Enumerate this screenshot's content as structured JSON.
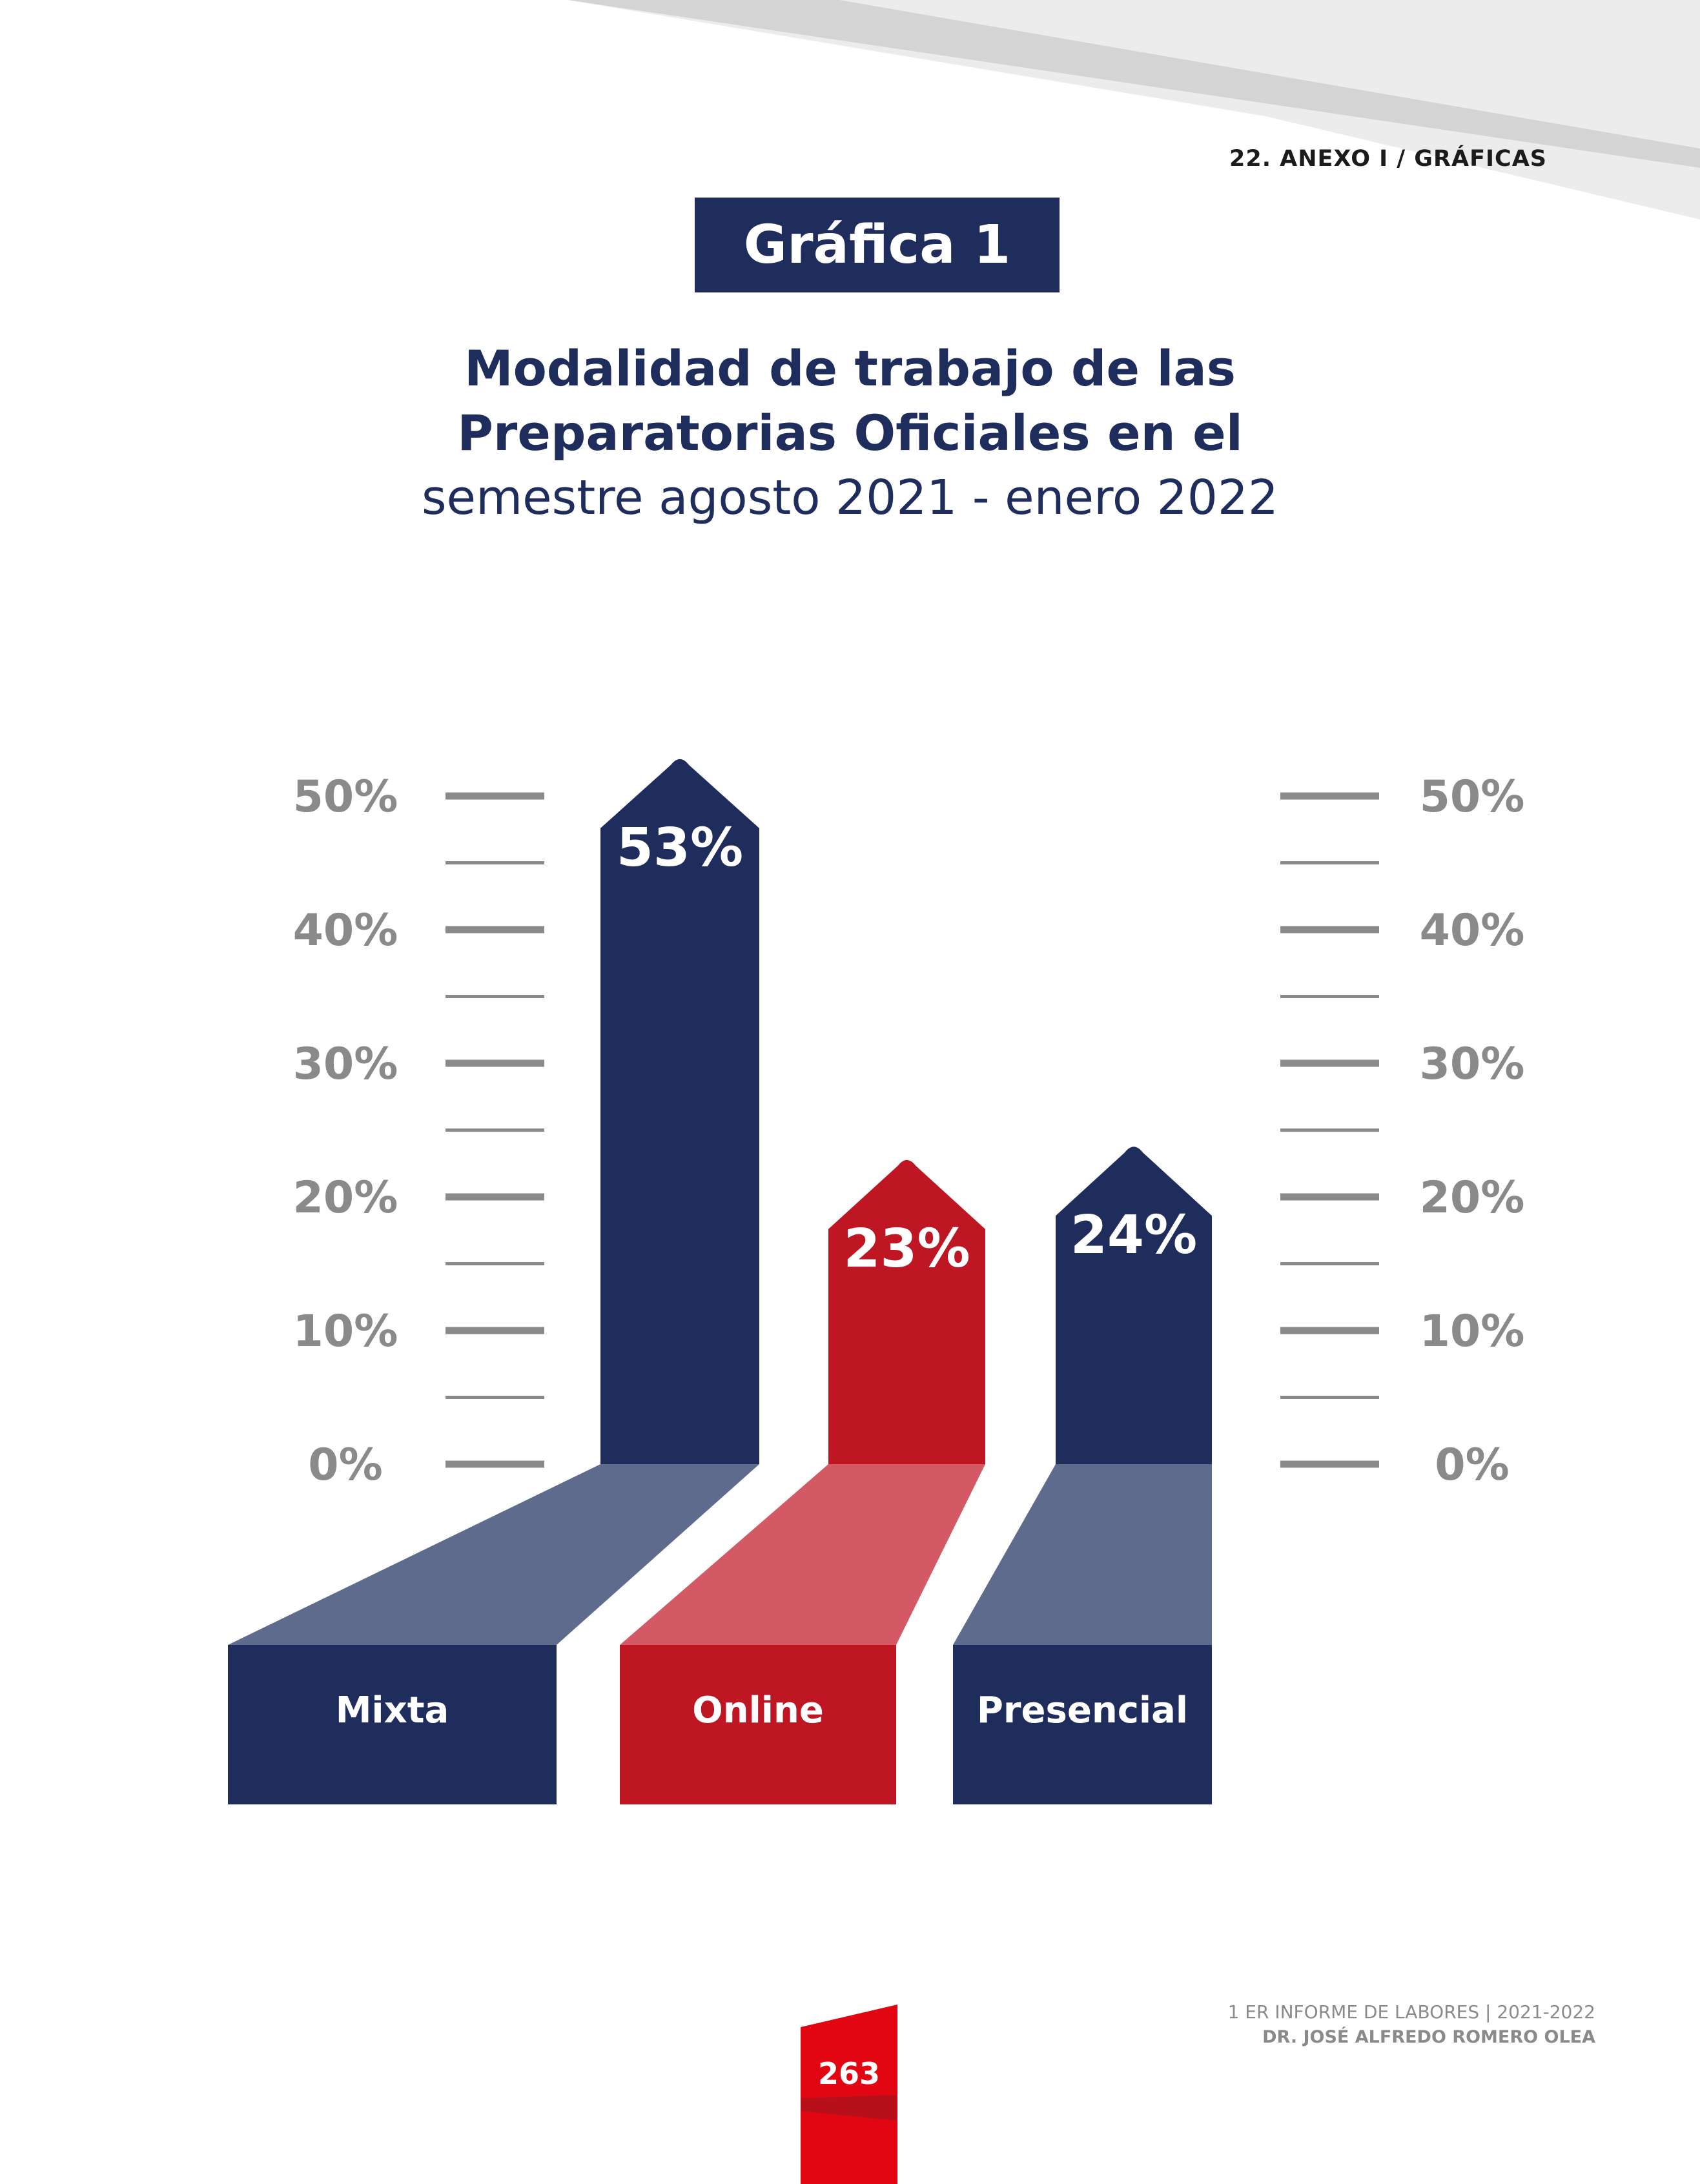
{
  "header": {
    "section": "22.  ANEXO I / GRÁFICAS"
  },
  "badge": {
    "label": "Gráfica 1"
  },
  "chart_data": {
    "type": "bar",
    "title_line1": "Modalidad de trabajo de las",
    "title_line2": "Preparatorias Oficiales en el",
    "title_line3": "semestre agosto 2021 - enero 2022",
    "categories": [
      "Mixta",
      "Online",
      "Presencial"
    ],
    "values": [
      53,
      23,
      24
    ],
    "value_labels": [
      "53%",
      "23%",
      "24%"
    ],
    "colors": [
      "#1f2d5c",
      "#be1723",
      "#1f2d5c"
    ],
    "base_colors": [
      "#5f6b8c",
      "#d35a64",
      "#5f6b8c"
    ],
    "y_ticks": [
      "0%",
      "10%",
      "20%",
      "30%",
      "40%",
      "50%"
    ],
    "ylim": [
      0,
      50
    ],
    "tick_color": "#8a8a8a"
  },
  "footer": {
    "line1": "1 ER INFORME DE LABORES | 2021-2022",
    "line2": "DR. JOSÉ ALFREDO ROMERO OLEA",
    "page": "263",
    "page_color": "#e20613"
  }
}
